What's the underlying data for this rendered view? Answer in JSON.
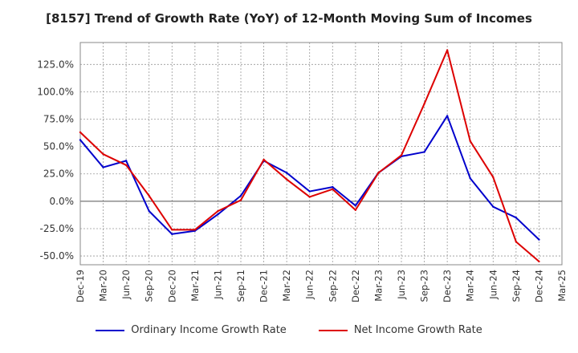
{
  "chart_data": {
    "type": "line",
    "title": "[8157]  Trend of Growth Rate (YoY) of 12-Month Moving Sum of Incomes",
    "x": [
      "Dec-19",
      "Mar-20",
      "Jun-20",
      "Sep-20",
      "Dec-20",
      "Mar-21",
      "Jun-21",
      "Sep-21",
      "Dec-21",
      "Mar-22",
      "Jun-22",
      "Sep-22",
      "Dec-22",
      "Mar-23",
      "Jun-23",
      "Sep-23",
      "Dec-23",
      "Mar-24",
      "Jun-24",
      "Sep-24",
      "Dec-24",
      "Mar-25"
    ],
    "ylim": [
      -58,
      145
    ],
    "yticks": [
      -50,
      -25,
      0,
      25,
      50,
      75,
      100,
      125
    ],
    "ytick_labels": [
      "-50.0%",
      "-25.0%",
      "0.0%",
      "25.0%",
      "50.0%",
      "75.0%",
      "100.0%",
      "125.0%"
    ],
    "grid": true,
    "legend_position": "bottom",
    "series": [
      {
        "name": "Ordinary Income Growth Rate",
        "color": "#0000cc",
        "values": [
          56,
          31,
          37,
          -9,
          -30,
          -27,
          -12,
          5,
          37,
          26,
          9,
          13,
          -4,
          26,
          41,
          45,
          78,
          21,
          -5,
          -15,
          -35,
          null
        ]
      },
      {
        "name": "Net Income Growth Rate",
        "color": "#dd0000",
        "values": [
          63,
          43,
          33,
          5,
          -26,
          -26,
          -9,
          1,
          38,
          20,
          4,
          11,
          -8,
          26,
          42,
          89,
          138,
          55,
          22,
          -37,
          -55,
          null
        ]
      }
    ]
  }
}
